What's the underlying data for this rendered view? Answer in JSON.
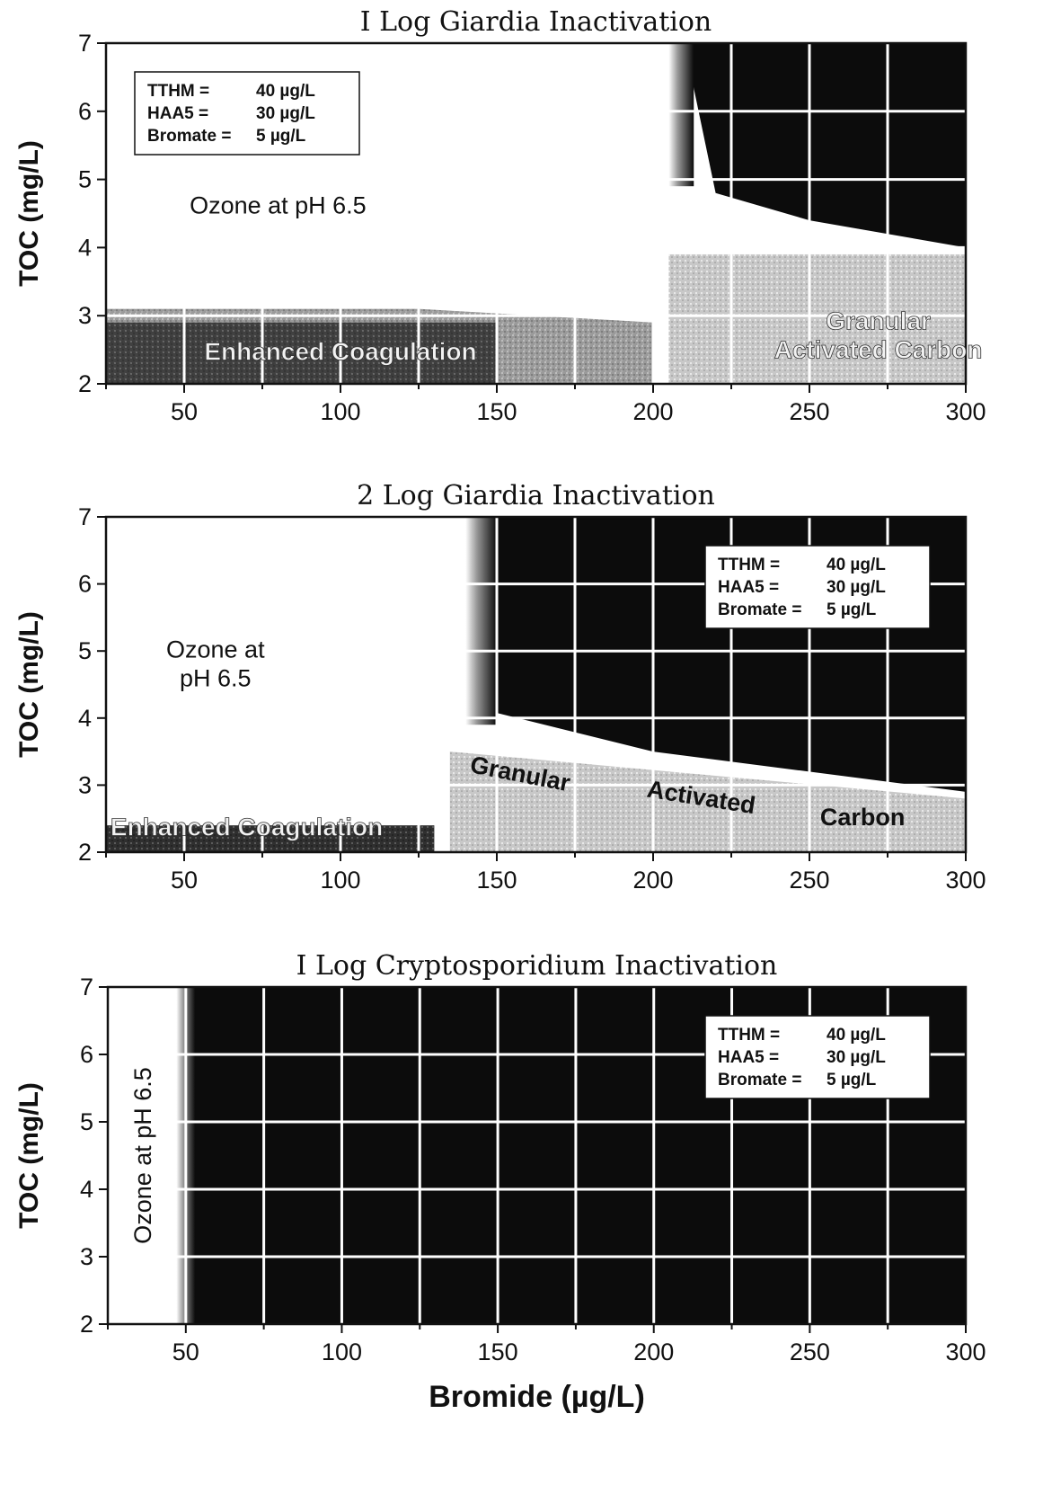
{
  "chart_data": [
    {
      "type": "area",
      "title": "I Log Giardia Inactivation",
      "xlabel": "",
      "ylabel": "TOC (mg/L)",
      "xlim": [
        25,
        300
      ],
      "ylim": [
        2,
        7
      ],
      "xticks": [
        "50",
        "100",
        "150",
        "200",
        "250",
        "300"
      ],
      "yticks": [
        "2",
        "3",
        "4",
        "5",
        "6",
        "7"
      ],
      "grid": true,
      "legend": {
        "placement": "top-left",
        "lines": [
          [
            "TTHM =",
            "40 µg/L"
          ],
          [
            "HAA5 =",
            "30 µg/L"
          ],
          [
            "Bromate =",
            "5 µg/L"
          ]
        ]
      },
      "regions": [
        {
          "label": "Ozone at pH 6.5",
          "shade": "white",
          "label_at": [
            80,
            4.5
          ]
        },
        {
          "label": "Enhanced Coagulation",
          "shade": "dark",
          "boundary_x": [
            25,
            125,
            200
          ],
          "boundary_y": [
            3.1,
            3.1,
            2.9
          ],
          "label_at": [
            100,
            2.35
          ]
        },
        {
          "label": "Granular Activated Carbon",
          "shade": "gray",
          "boundary_x": [
            205,
            300
          ],
          "boundary_y": [
            3.9,
            3.9
          ],
          "label_lines": [
            "Granular",
            "Activated Carbon"
          ],
          "label_at": [
            272,
            2.8
          ]
        },
        {
          "label": "",
          "shade": "black",
          "boundary_x": [
            210,
            220,
            250,
            300
          ],
          "boundary_y": [
            7,
            4.8,
            4.4,
            4.0
          ]
        }
      ]
    },
    {
      "type": "area",
      "title": "2 Log Giardia Inactivation",
      "xlabel": "",
      "ylabel": "TOC (mg/L)",
      "xlim": [
        25,
        300
      ],
      "ylim": [
        2,
        7
      ],
      "xticks": [
        "50",
        "100",
        "150",
        "200",
        "250",
        "300"
      ],
      "yticks": [
        "2",
        "3",
        "4",
        "5",
        "6",
        "7"
      ],
      "grid": true,
      "legend": {
        "placement": "top-right",
        "lines": [
          [
            "TTHM =",
            "40 µg/L"
          ],
          [
            "HAA5 =",
            "30 µg/L"
          ],
          [
            "Bromate =",
            "5 µg/L"
          ]
        ]
      },
      "regions": [
        {
          "label": "Ozone at pH 6.5",
          "shade": "white",
          "label_lines": [
            "Ozone at",
            "pH 6.5"
          ],
          "label_at": [
            60,
            4.9
          ]
        },
        {
          "label": "Enhanced Coagulation",
          "shade": "dark",
          "boundary_x": [
            25,
            130
          ],
          "boundary_y": [
            2.4,
            2.4
          ],
          "label_at": [
            70,
            2.25
          ]
        },
        {
          "label": "Granular Activated Carbon",
          "shade": "gray",
          "boundary_x": [
            135,
            300
          ],
          "boundary_y": [
            3.5,
            2.8
          ]
        },
        {
          "label": "",
          "shade": "black",
          "boundary_x": [
            148,
            200,
            300
          ],
          "boundary_y": [
            7,
            3.5,
            2.9
          ]
        }
      ],
      "rotated_labels": [
        {
          "text": "Granular",
          "at": [
            157,
            3.05
          ],
          "angle": 11
        },
        {
          "text": "Activated",
          "at": [
            215,
            2.7
          ],
          "angle": 9
        },
        {
          "text": "Carbon",
          "at": [
            267,
            2.4
          ],
          "angle": 0
        }
      ]
    },
    {
      "type": "area",
      "title": "I Log Cryptosporidium Inactivation",
      "xlabel": "Bromide (µg/L)",
      "ylabel": "TOC (mg/L)",
      "xlim": [
        25,
        300
      ],
      "ylim": [
        2,
        7
      ],
      "xticks": [
        "50",
        "100",
        "150",
        "200",
        "250",
        "300"
      ],
      "yticks": [
        "2",
        "3",
        "4",
        "5",
        "6",
        "7"
      ],
      "grid": true,
      "legend": {
        "placement": "top-right",
        "lines": [
          [
            "TTHM =",
            "40 µg/L"
          ],
          [
            "HAA5 =",
            "30 µg/L"
          ],
          [
            "Bromate =",
            "5 µg/L"
          ]
        ]
      },
      "regions": [
        {
          "label": "Ozone at pH 6.5",
          "shade": "white",
          "boundary_x": [
            48
          ],
          "vertical_label": true,
          "label_at": [
            36,
            4.5
          ]
        },
        {
          "label": "",
          "shade": "black",
          "boundary_x": [
            50,
            300
          ]
        }
      ]
    }
  ]
}
